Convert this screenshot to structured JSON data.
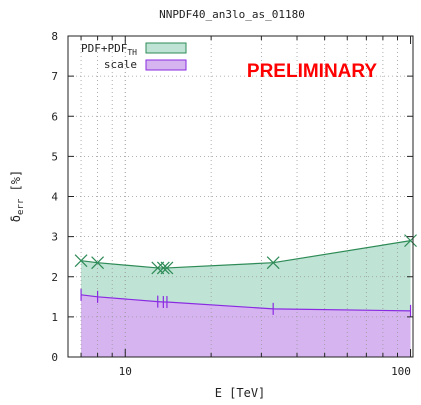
{
  "chart_data": {
    "type": "area",
    "title": "NNPDF40_an3lo_as_01180",
    "annotation": "PRELIMINARY",
    "xlabel": "E [TeV]",
    "ylabel_main": "δ",
    "ylabel_sub": "err",
    "ylabel_unit": "[%]",
    "x_scale": "log",
    "xlim": [
      6.3,
      102
    ],
    "ylim": [
      0,
      8
    ],
    "x_tick_labels": [
      {
        "value": 10,
        "label": "10"
      },
      {
        "value": 100,
        "label": "100"
      }
    ],
    "y_tick_labels": [
      "0",
      "1",
      "2",
      "3",
      "4",
      "5",
      "6",
      "7",
      "8"
    ],
    "legend_position": "top-left",
    "series": [
      {
        "name_main": "PDF+PDF",
        "name_sub": "TH",
        "color": "#bfe3d4",
        "stroke": "#2e8b57",
        "marker": "x",
        "x": [
          7,
          8,
          13,
          13.6,
          14,
          33,
          100
        ],
        "y": [
          2.4,
          2.35,
          2.22,
          2.22,
          2.22,
          2.35,
          2.9
        ]
      },
      {
        "name_main": "scale",
        "name_sub": "",
        "color": "#d6b4ef",
        "stroke": "#8a2be2",
        "marker": "|",
        "x": [
          7,
          8,
          13,
          13.6,
          14,
          33,
          100
        ],
        "y": [
          1.55,
          1.5,
          1.38,
          1.37,
          1.37,
          1.2,
          1.15
        ]
      }
    ]
  }
}
